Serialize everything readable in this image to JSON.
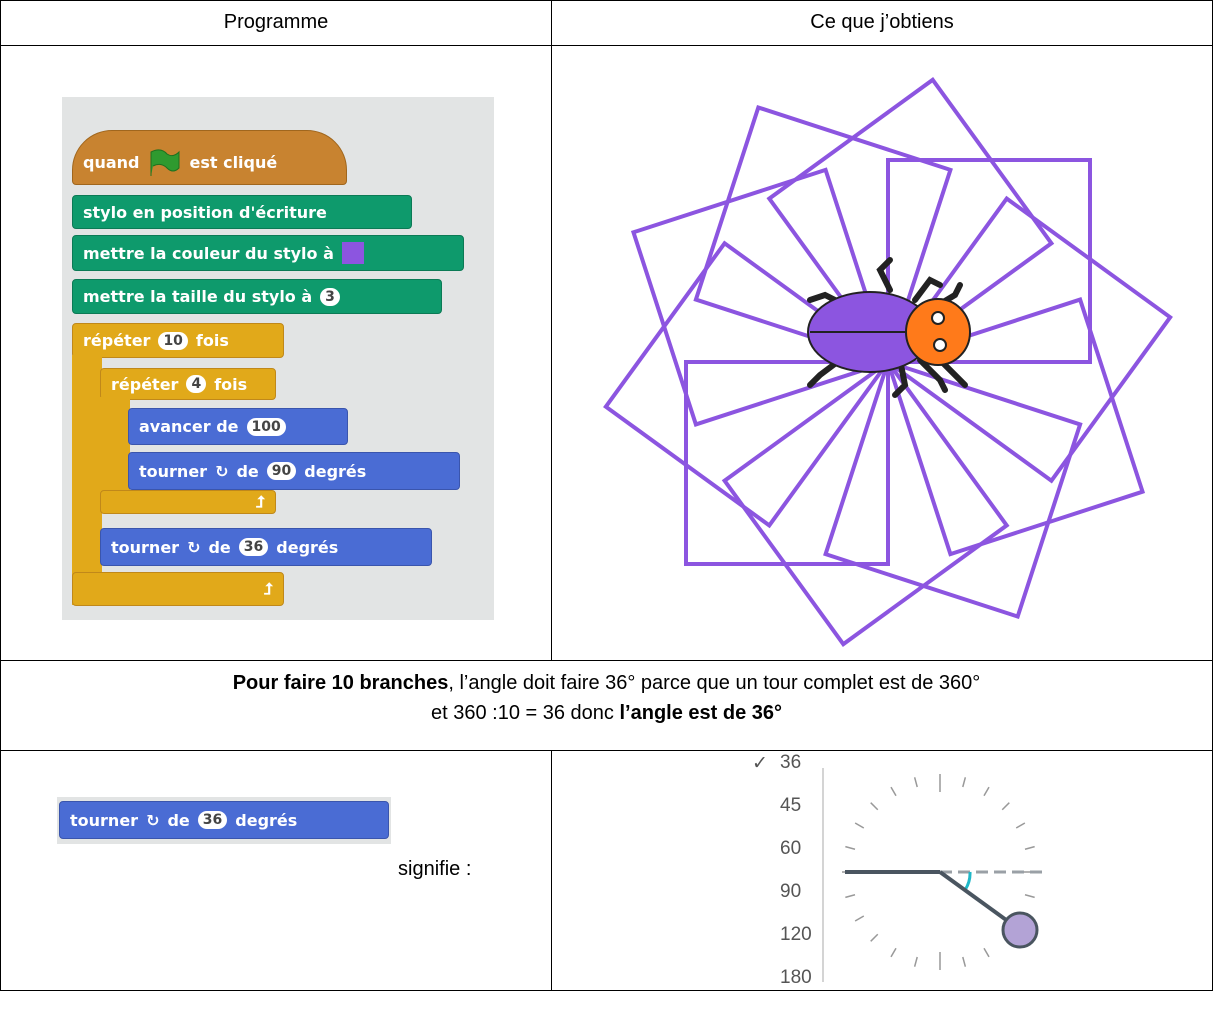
{
  "table": {
    "header": [
      "Programme",
      "Ce que j’obtiens"
    ],
    "script": {
      "hat": [
        "quand",
        "est cliqué"
      ],
      "pen_down": "stylo en position d'écriture",
      "pen_color": "mettre la couleur du stylo à",
      "pen_size": [
        "mettre la taille du stylo à",
        "3"
      ],
      "repeat_outer": [
        "répéter",
        "10",
        "fois"
      ],
      "repeat_inner": [
        "répéter",
        "4",
        "fois"
      ],
      "move": [
        "avancer de",
        "100"
      ],
      "turn_inner": [
        "tourner",
        "de",
        "90",
        "degrés"
      ],
      "turn_outer": [
        "tourner",
        "de",
        "36",
        "degrés"
      ]
    },
    "explanation": {
      "line1": [
        "Pour faire 10 branches",
        ", l’angle doit faire 36° parce que un tour complet est de 360°"
      ],
      "line2": [
        "et 360 :10 = 36 donc ",
        "l’angle est de 36°"
      ]
    },
    "block": [
      "tourner",
      "de",
      "36",
      "degrés"
    ],
    "signifie": "signifie :",
    "angle_menu": {
      "check": "✓",
      "options": [
        36,
        45,
        60,
        90,
        120,
        180
      ]
    }
  }
}
